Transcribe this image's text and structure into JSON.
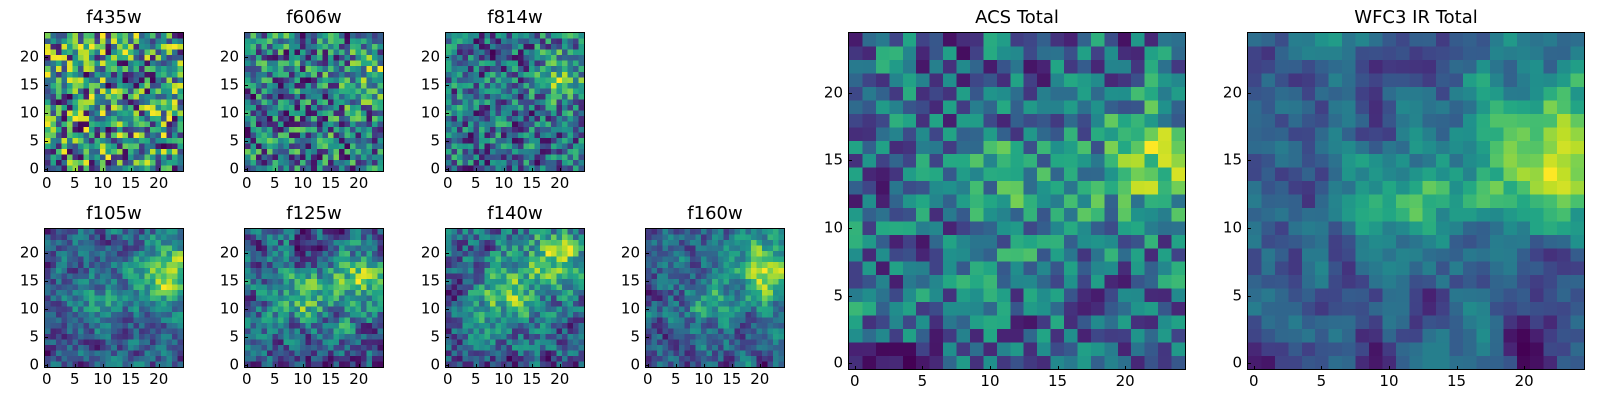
{
  "figure": {
    "panels": [
      {
        "id": "f435w",
        "title": "f435w",
        "kind": "small",
        "seed": 11,
        "smooth": 0.0,
        "blob": [],
        "bias": 0.62
      },
      {
        "id": "f606w",
        "title": "f606w",
        "kind": "small",
        "seed": 23,
        "smooth": 0.15,
        "blob": [
          {
            "x": 22,
            "y": 16,
            "s": 3,
            "a": 0.25
          }
        ],
        "bias": 0.55
      },
      {
        "id": "f814w",
        "title": "f814w",
        "kind": "small",
        "seed": 37,
        "smooth": 0.2,
        "blob": [
          {
            "x": 21,
            "y": 17,
            "s": 3,
            "a": 0.35
          }
        ],
        "bias": 0.52
      },
      {
        "id": "f105w",
        "title": "f105w",
        "kind": "small",
        "seed": 41,
        "smooth": 0.55,
        "blob": [
          {
            "x": 22,
            "y": 16,
            "s": 4,
            "a": 0.5
          },
          {
            "x": 10,
            "y": 12,
            "s": 4,
            "a": 0.2
          }
        ],
        "bias": 0.5
      },
      {
        "id": "f125w",
        "title": "f125w",
        "kind": "small",
        "seed": 53,
        "smooth": 0.5,
        "blob": [
          {
            "x": 21,
            "y": 15,
            "s": 4,
            "a": 0.4
          },
          {
            "x": 10,
            "y": 12,
            "s": 3,
            "a": 0.3
          }
        ],
        "bias": 0.48
      },
      {
        "id": "f140w",
        "title": "f140w",
        "kind": "small",
        "seed": 67,
        "smooth": 0.5,
        "blob": [
          {
            "x": 20,
            "y": 19,
            "s": 4,
            "a": 0.4
          },
          {
            "x": 10,
            "y": 13,
            "s": 4,
            "a": 0.35
          }
        ],
        "bias": 0.47
      },
      {
        "id": "f160w",
        "title": "f160w",
        "kind": "small",
        "seed": 79,
        "smooth": 0.55,
        "blob": [
          {
            "x": 21,
            "y": 17,
            "s": 4,
            "a": 0.5
          },
          {
            "x": 11,
            "y": 11,
            "s": 3,
            "a": 0.25
          }
        ],
        "bias": 0.48
      },
      {
        "id": "acs",
        "title": "ACS Total",
        "kind": "large",
        "seed": 97,
        "smooth": 0.3,
        "blob": [
          {
            "x": 22,
            "y": 15,
            "s": 3,
            "a": 0.35
          },
          {
            "x": 12,
            "y": 13,
            "s": 3,
            "a": 0.2
          }
        ],
        "bias": 0.6
      },
      {
        "id": "wfc3",
        "title": "WFC3 IR Total",
        "kind": "large",
        "seed": 131,
        "smooth": 0.75,
        "blob": [
          {
            "x": 22,
            "y": 16,
            "s": 4,
            "a": 0.6
          },
          {
            "x": 12,
            "y": 12,
            "s": 3,
            "a": 0.35
          }
        ],
        "bias": 0.35
      }
    ]
  },
  "chart_data": [
    {
      "type": "heatmap",
      "title": "f435w",
      "xlim": [
        0,
        25
      ],
      "ylim": [
        0,
        25
      ],
      "xticks": [
        "0",
        "5",
        "10",
        "15",
        "20"
      ],
      "yticks": [
        "0",
        "5",
        "10",
        "15",
        "20"
      ],
      "colormap": "viridis"
    },
    {
      "type": "heatmap",
      "title": "f606w",
      "xlim": [
        0,
        25
      ],
      "ylim": [
        0,
        25
      ],
      "xticks": [
        "0",
        "5",
        "10",
        "15",
        "20"
      ],
      "yticks": [
        "0",
        "5",
        "10",
        "15",
        "20"
      ],
      "colormap": "viridis"
    },
    {
      "type": "heatmap",
      "title": "f814w",
      "xlim": [
        0,
        25
      ],
      "ylim": [
        0,
        25
      ],
      "xticks": [
        "0",
        "5",
        "10",
        "15",
        "20"
      ],
      "yticks": [
        "0",
        "5",
        "10",
        "15",
        "20"
      ],
      "colormap": "viridis"
    },
    {
      "type": "heatmap",
      "title": "f105w",
      "xlim": [
        0,
        25
      ],
      "ylim": [
        0,
        25
      ],
      "xticks": [
        "0",
        "5",
        "10",
        "15",
        "20"
      ],
      "yticks": [
        "0",
        "5",
        "10",
        "15",
        "20"
      ],
      "colormap": "viridis"
    },
    {
      "type": "heatmap",
      "title": "f125w",
      "xlim": [
        0,
        25
      ],
      "ylim": [
        0,
        25
      ],
      "xticks": [
        "0",
        "5",
        "10",
        "15",
        "20"
      ],
      "yticks": [
        "0",
        "5",
        "10",
        "15",
        "20"
      ],
      "colormap": "viridis"
    },
    {
      "type": "heatmap",
      "title": "f140w",
      "xlim": [
        0,
        25
      ],
      "ylim": [
        0,
        25
      ],
      "xticks": [
        "0",
        "5",
        "10",
        "15",
        "20"
      ],
      "yticks": [
        "0",
        "5",
        "10",
        "15",
        "20"
      ],
      "colormap": "viridis"
    },
    {
      "type": "heatmap",
      "title": "f160w",
      "xlim": [
        0,
        25
      ],
      "ylim": [
        0,
        25
      ],
      "xticks": [
        "0",
        "5",
        "10",
        "15",
        "20"
      ],
      "yticks": [
        "0",
        "5",
        "10",
        "15",
        "20"
      ],
      "colormap": "viridis"
    },
    {
      "type": "heatmap",
      "title": "ACS Total",
      "xlim": [
        0,
        25
      ],
      "ylim": [
        0,
        25
      ],
      "xticks": [
        "0",
        "5",
        "10",
        "15",
        "20"
      ],
      "yticks": [
        "0",
        "5",
        "10",
        "15",
        "20"
      ],
      "colormap": "viridis"
    },
    {
      "type": "heatmap",
      "title": "WFC3 IR Total",
      "xlim": [
        0,
        25
      ],
      "ylim": [
        0,
        25
      ],
      "xticks": [
        "0",
        "5",
        "10",
        "15",
        "20"
      ],
      "yticks": [
        "0",
        "5",
        "10",
        "15",
        "20"
      ],
      "colormap": "viridis"
    }
  ]
}
